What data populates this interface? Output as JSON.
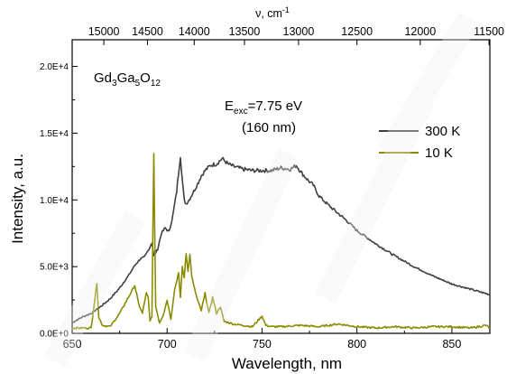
{
  "chart_data": {
    "type": "line",
    "compound": "Gd",
    "compound_sub1": "3",
    "compound_mid": "Ga",
    "compound_sub2": "5",
    "compound_end": "O",
    "compound_sub3": "12",
    "excitation_label": "E",
    "excitation_sub": "exc",
    "excitation_value": "=7.75 eV",
    "excitation_wavelength": "(160 nm)",
    "xlabel": "Wavelength, nm",
    "ylabel": "Intensity, a.u.",
    "top_xlabel_symbol": "ν, cm",
    "top_xlabel_exp": "-1",
    "xlim": [
      650,
      870
    ],
    "ylim": [
      0,
      22000
    ],
    "x_ticks": [
      650,
      700,
      750,
      800,
      850
    ],
    "y_ticks": [
      0,
      5000,
      10000,
      15000,
      20000
    ],
    "y_tick_labels": [
      "0.0E+0",
      "5.0E+3",
      "1.0E+4",
      "1.5E+4",
      "2.0E+4"
    ],
    "top_ticks": [
      15000,
      14500,
      14000,
      13500,
      13000,
      12500,
      12000,
      11500
    ],
    "legend_position": "right",
    "series": [
      {
        "name": "300 K",
        "color": "#404040",
        "x": [
          650,
          655,
          660,
          665,
          670,
          675,
          680,
          683,
          686,
          688,
          690,
          692,
          693,
          695,
          697,
          699,
          701,
          703,
          705,
          706,
          707,
          708,
          709,
          710,
          712,
          715,
          718,
          720,
          723,
          726,
          729,
          732,
          735,
          740,
          745,
          750,
          755,
          760,
          765,
          768,
          771,
          774,
          777,
          780,
          785,
          790,
          795,
          800,
          810,
          820,
          830,
          840,
          850,
          860,
          870
        ],
        "y": [
          800,
          1200,
          1500,
          2000,
          2600,
          3400,
          4400,
          5100,
          5600,
          5700,
          6200,
          6800,
          5800,
          6300,
          7500,
          7900,
          7600,
          8800,
          10600,
          12000,
          13300,
          11500,
          10000,
          9700,
          10100,
          10900,
          11800,
          12200,
          12600,
          12700,
          13100,
          12700,
          12500,
          12300,
          12200,
          12200,
          12200,
          12400,
          12300,
          12600,
          12000,
          11500,
          11100,
          10300,
          9600,
          9000,
          8400,
          7700,
          6700,
          5800,
          5000,
          4300,
          3700,
          3300,
          2900
        ]
      },
      {
        "name": "10 K",
        "color": "#8b8b00",
        "x": [
          650,
          660,
          663,
          664,
          666,
          670,
          675,
          680,
          683,
          685,
          687,
          689,
          690,
          691,
          692,
          693,
          694,
          696,
          698,
          700,
          702,
          704,
          706,
          707,
          708,
          709,
          710,
          711,
          712,
          713,
          714,
          716,
          718,
          720,
          722,
          724,
          726,
          728,
          730,
          735,
          740,
          745,
          750,
          752,
          755,
          760,
          770,
          780,
          790,
          800,
          810,
          820,
          830,
          840,
          850,
          860,
          868,
          870
        ],
        "y": [
          400,
          400,
          3800,
          1200,
          600,
          500,
          1500,
          2800,
          3600,
          2200,
          1500,
          3000,
          2700,
          900,
          1300,
          13400,
          2000,
          800,
          1400,
          2500,
          1100,
          3300,
          4500,
          2700,
          5000,
          4100,
          6000,
          4700,
          5900,
          4300,
          3600,
          2500,
          1700,
          3000,
          1500,
          2700,
          1500,
          2000,
          900,
          700,
          600,
          500,
          1300,
          600,
          500,
          500,
          600,
          500,
          700,
          500,
          400,
          500,
          400,
          500,
          500,
          400,
          600,
          400
        ]
      }
    ]
  }
}
